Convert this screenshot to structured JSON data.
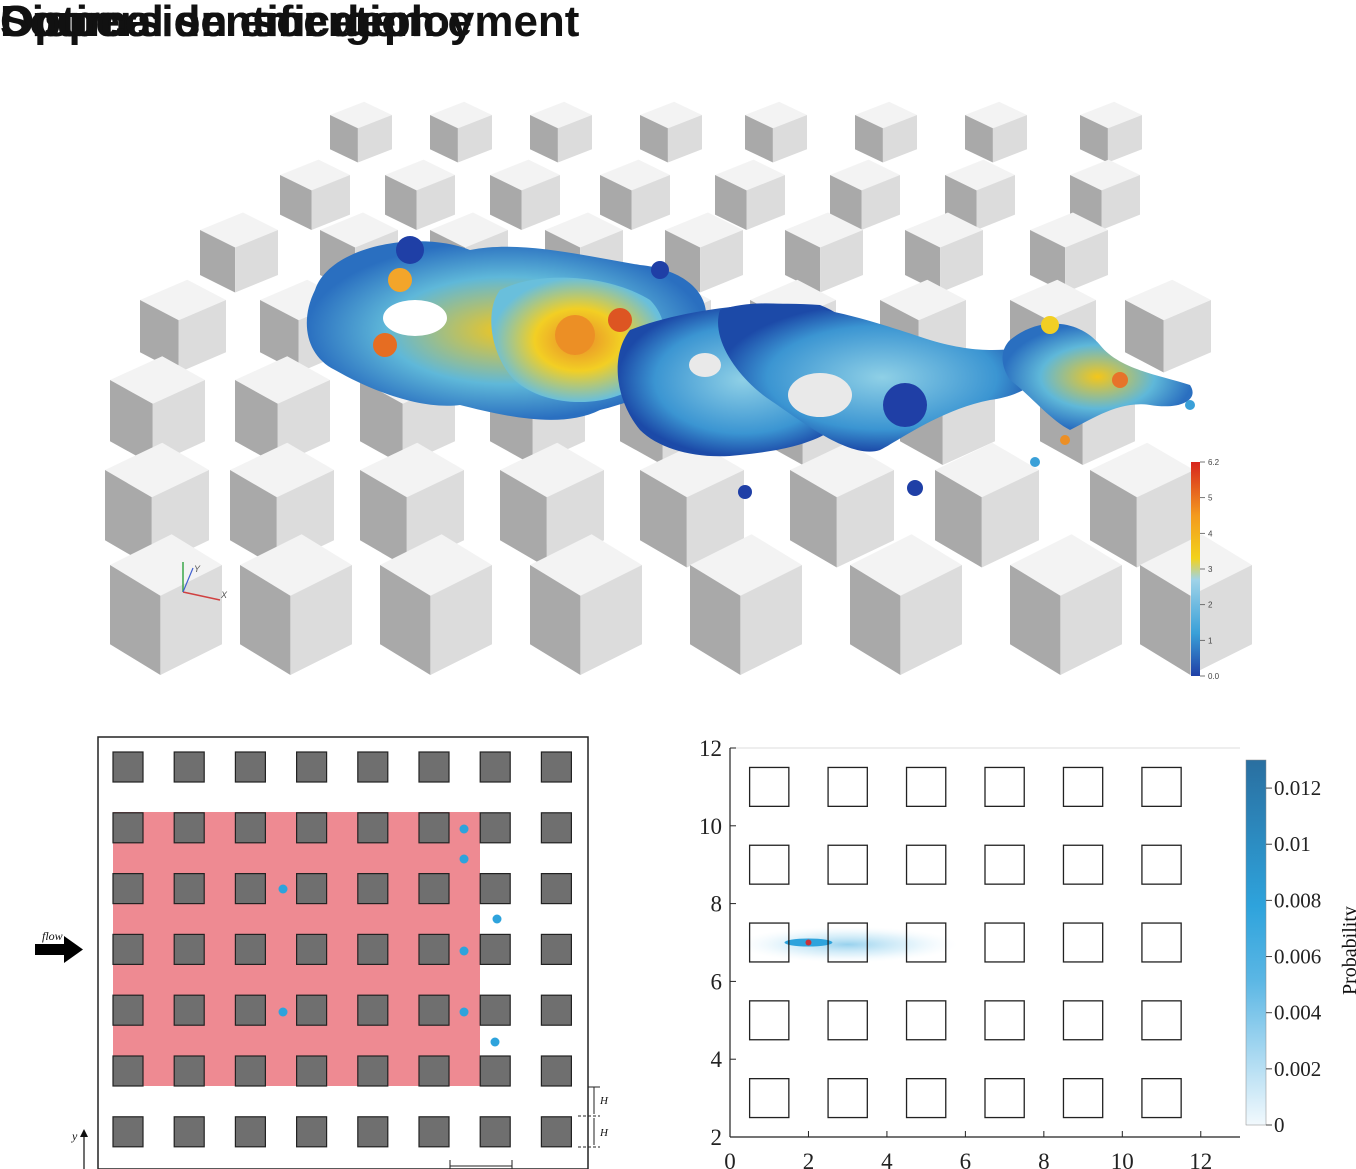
{
  "titles": {
    "dispersion": "Dispersion emergence",
    "optimal": "Optimal sensor deployment",
    "source": "Source identification"
  },
  "render3d": {
    "colorbar_ticks": [
      "6.2",
      "5",
      "4",
      "3",
      "2",
      "1",
      "0.0"
    ],
    "axis_labels": [
      "Y",
      "X"
    ],
    "colorbar_colors": [
      "#1f3fa6",
      "#3aa0d8",
      "#9fd3e8",
      "#f2d21b",
      "#f39a1f",
      "#d7261e"
    ]
  },
  "sensor_panel": {
    "flow_label": "flow",
    "dim_label_h1": "H",
    "dim_label_h2": "H",
    "y_axis_label": "y",
    "grid_rows": 7,
    "grid_cols": 8,
    "region_color": "#ee8a92",
    "sensor_color": "#2ea3dc"
  },
  "chart_data": {
    "type": "heatmap",
    "title": "",
    "xlabel": "",
    "ylabel": "",
    "xlim": [
      0,
      13
    ],
    "ylim": [
      2,
      12
    ],
    "x_ticks": [
      "0",
      "2",
      "4",
      "6",
      "8",
      "10",
      "12"
    ],
    "y_ticks": [
      "2",
      "4",
      "6",
      "8",
      "10",
      "12"
    ],
    "obstacle_columns_x": [
      1,
      3,
      5,
      7,
      9,
      11
    ],
    "obstacle_rows_y": [
      3,
      5,
      7,
      9,
      11
    ],
    "obstacle_size": 1,
    "peak": {
      "x": 2.0,
      "y": 7.0
    },
    "colorbar": {
      "label": "Probability",
      "ticks": [
        "0",
        "0.002",
        "0.004",
        "0.006",
        "0.008",
        "0.01",
        "0.012"
      ],
      "range": [
        0,
        0.013
      ]
    }
  }
}
